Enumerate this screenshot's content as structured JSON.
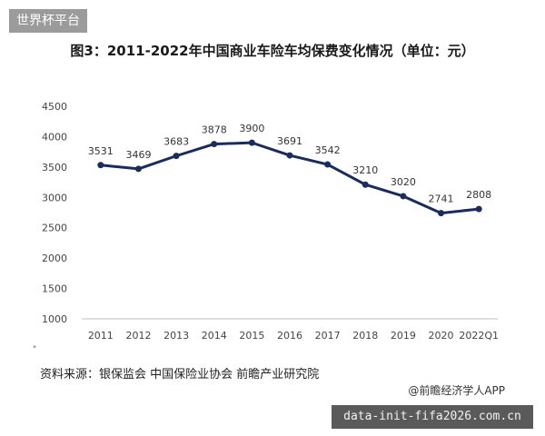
{
  "header": {
    "tag": "世界杯平台"
  },
  "chart_data": {
    "type": "line",
    "title": "图3：2011-2022年中国商业车险车均保费变化情况（单位：元）",
    "categories": [
      "2011",
      "2012",
      "2013",
      "2014",
      "2015",
      "2016",
      "2017",
      "2018",
      "2019",
      "2020",
      "2022Q1"
    ],
    "series": [
      {
        "values": [
          3531,
          3469,
          3683,
          3878,
          3900,
          3691,
          3542,
          3210,
          3020,
          2741,
          2808
        ]
      }
    ],
    "data_labels": [
      "3531",
      "3469",
      "3683",
      "3878",
      "3900",
      "3691",
      "3542",
      "3210",
      "3020",
      "2741",
      "2808"
    ],
    "yticks": [
      1000,
      1500,
      2000,
      2500,
      3000,
      3500,
      4000,
      4500
    ],
    "ylim": [
      1000,
      4500
    ],
    "grid": false,
    "colors": {
      "line": "#1b2b5e",
      "axis": "#bfbfbf",
      "tick_text": "#444444"
    }
  },
  "footer": {
    "source": "资料来源：银保监会 中国保险业协会 前瞻产业研究院",
    "credit": "@前瞻经济学人APP",
    "watermark": "data-init-fifa2026.com.cn",
    "small_mark": "\""
  }
}
